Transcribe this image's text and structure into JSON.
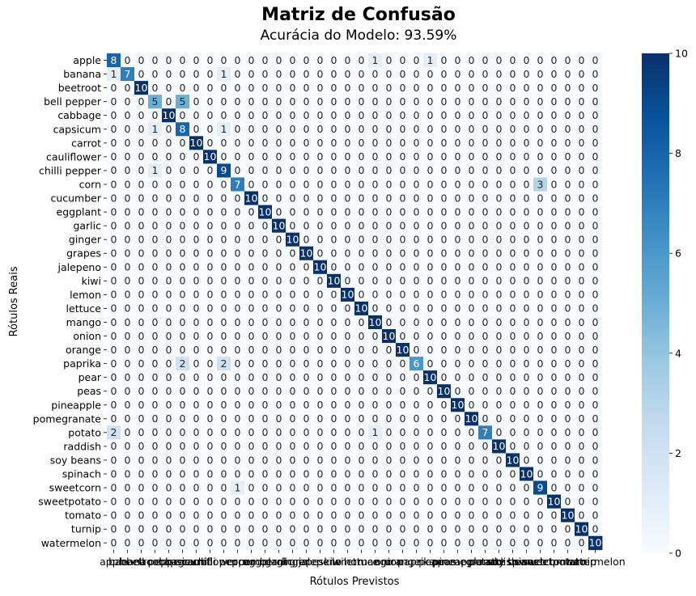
{
  "chart_data": {
    "type": "heatmap",
    "title": "Matriz de Confusão",
    "subtitle": "Acurácia do Modelo: 93.59%",
    "xlabel": "Rótulos Previstos",
    "ylabel": "Rótulos Reais",
    "labels": [
      "apple",
      "banana",
      "beetroot",
      "bell pepper",
      "cabbage",
      "capsicum",
      "carrot",
      "cauliflower",
      "chilli pepper",
      "corn",
      "cucumber",
      "eggplant",
      "garlic",
      "ginger",
      "grapes",
      "jalepeno",
      "kiwi",
      "lemon",
      "lettuce",
      "mango",
      "onion",
      "orange",
      "paprika",
      "pear",
      "peas",
      "pineapple",
      "pomegranate",
      "potato",
      "raddish",
      "soy beans",
      "spinach",
      "sweetcorn",
      "sweetpotato",
      "tomato",
      "turnip",
      "watermelon"
    ],
    "diagonal": [
      8,
      7,
      10,
      5,
      10,
      8,
      10,
      10,
      9,
      7,
      10,
      10,
      10,
      10,
      10,
      10,
      10,
      10,
      10,
      10,
      10,
      10,
      6,
      10,
      10,
      10,
      10,
      7,
      10,
      10,
      10,
      9,
      10,
      10,
      10,
      10
    ],
    "off_diagonal": [
      {
        "row": 0,
        "col": 19,
        "value": 1
      },
      {
        "row": 0,
        "col": 23,
        "value": 1
      },
      {
        "row": 1,
        "col": 0,
        "value": 1
      },
      {
        "row": 1,
        "col": 8,
        "value": 1
      },
      {
        "row": 3,
        "col": 5,
        "value": 5
      },
      {
        "row": 5,
        "col": 3,
        "value": 1
      },
      {
        "row": 5,
        "col": 8,
        "value": 1
      },
      {
        "row": 8,
        "col": 3,
        "value": 1
      },
      {
        "row": 9,
        "col": 31,
        "value": 3
      },
      {
        "row": 22,
        "col": 5,
        "value": 2
      },
      {
        "row": 22,
        "col": 8,
        "value": 2
      },
      {
        "row": 27,
        "col": 0,
        "value": 2
      },
      {
        "row": 27,
        "col": 19,
        "value": 1
      },
      {
        "row": 31,
        "col": 9,
        "value": 1
      }
    ],
    "colorbar": {
      "min": 0,
      "max": 10,
      "ticks": [
        0,
        2,
        4,
        6,
        8,
        10
      ]
    },
    "colormap": [
      "#f7fbff",
      "#deebf7",
      "#c6dbef",
      "#9ecae1",
      "#6baed6",
      "#4292c6",
      "#2171b5",
      "#08519c",
      "#08306b"
    ],
    "grid": false
  }
}
